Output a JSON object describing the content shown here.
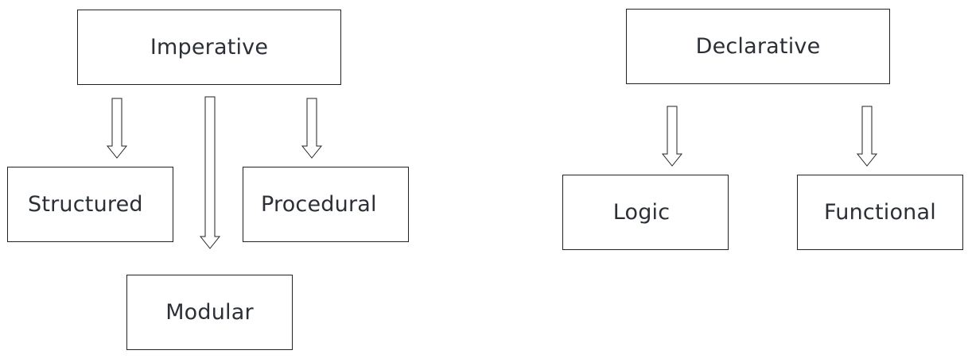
{
  "diagram": {
    "imperative": {
      "label": "Imperative",
      "children": {
        "structured": "Structured",
        "modular": "Modular",
        "procedural": "Procedural"
      }
    },
    "declarative": {
      "label": "Declarative",
      "children": {
        "logic": "Logic",
        "functional": "Functional"
      }
    }
  }
}
